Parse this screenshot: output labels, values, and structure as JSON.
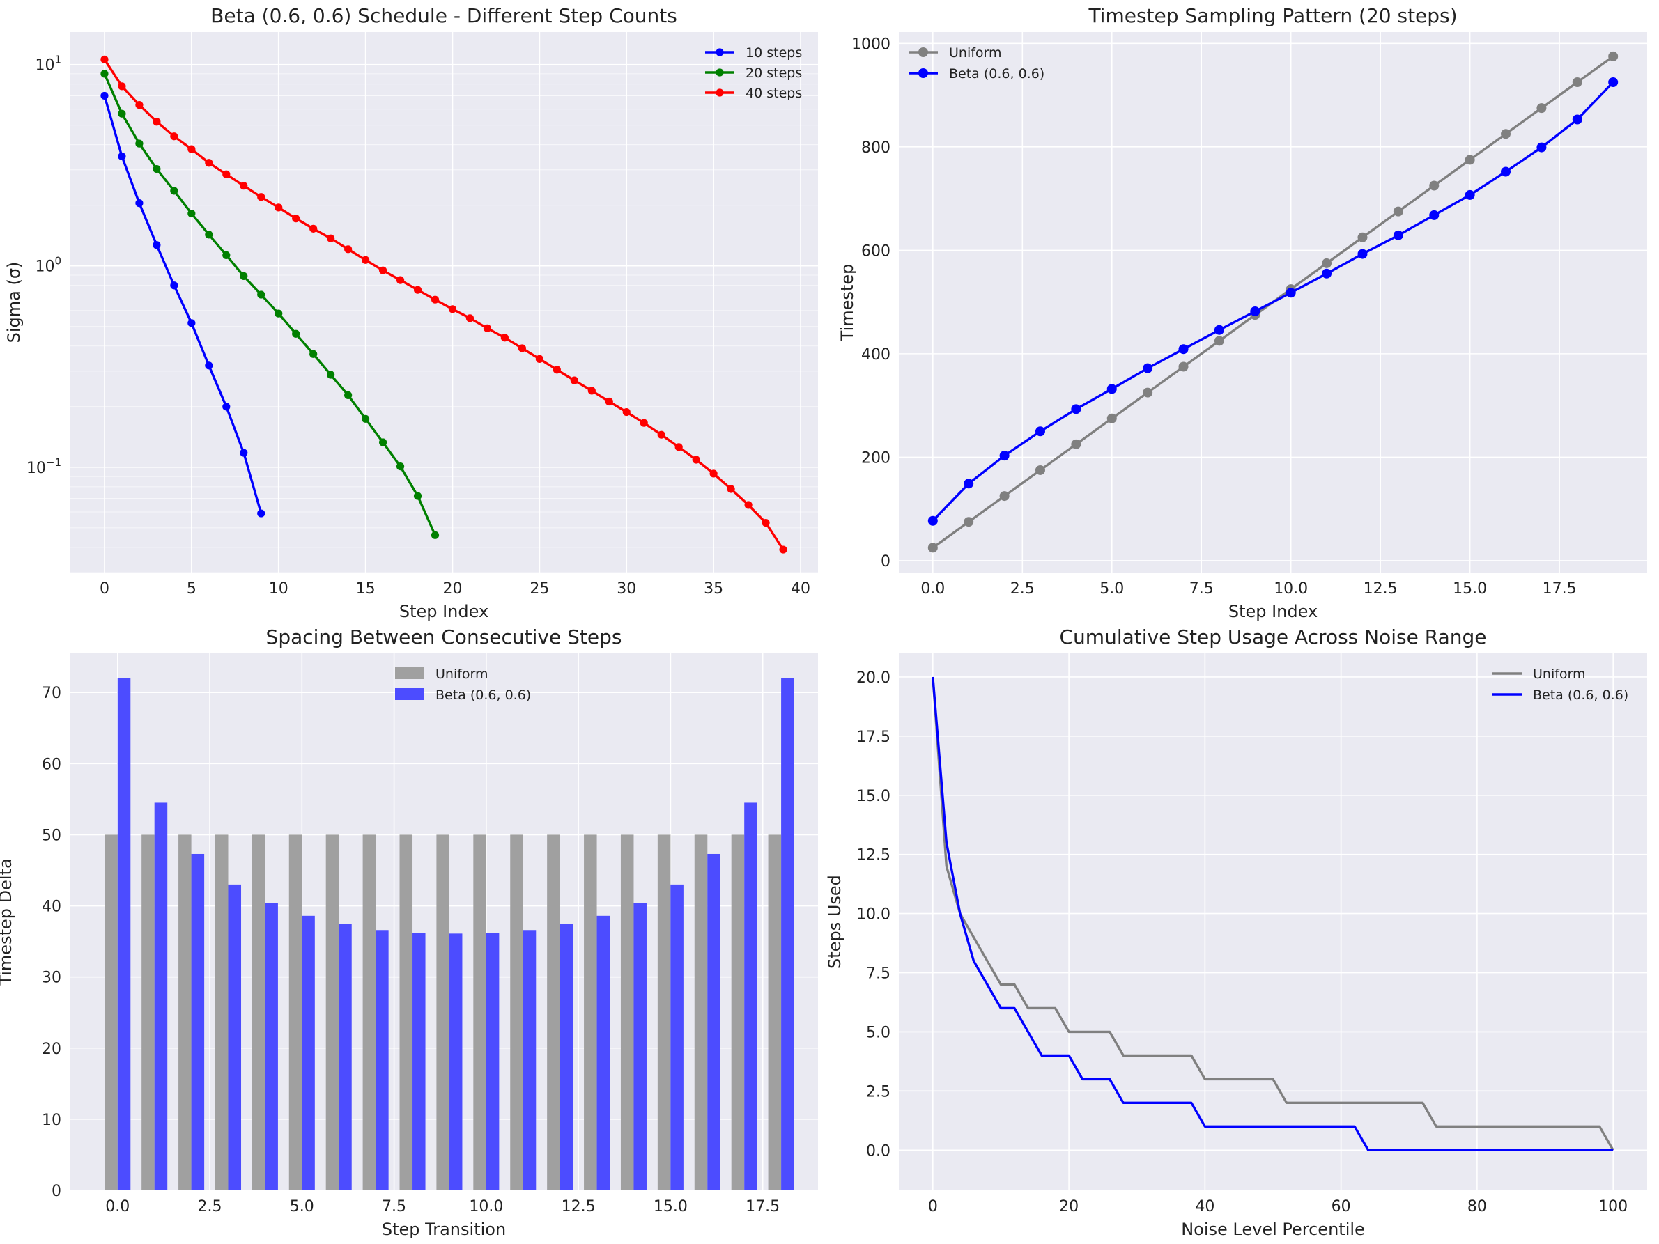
{
  "chart_data": [
    {
      "id": "p1",
      "type": "line",
      "title": "Beta (0.6, 0.6) Schedule - Different Step Counts",
      "xlabel": "Step Index",
      "ylabel": "Sigma (σ)",
      "yscale": "log",
      "xlim": [
        -2,
        41
      ],
      "ylim": [
        0.03,
        14.5
      ],
      "xticks": [
        0,
        5,
        10,
        15,
        20,
        25,
        30,
        35,
        40
      ],
      "xtick_labels": [
        "0",
        "5",
        "10",
        "15",
        "20",
        "25",
        "30",
        "35",
        "40"
      ],
      "ytick_labels": [
        {
          "base": "10",
          "exp": "1",
          "value": 10
        },
        {
          "base": "10",
          "exp": "0",
          "value": 1
        },
        {
          "base": "10",
          "exp": "−1",
          "value": 0.1
        }
      ],
      "legend": "top-right",
      "series": [
        {
          "name": "10 steps",
          "color": "#0000ff",
          "x": [
            0,
            1,
            2,
            3,
            4,
            5,
            6,
            7,
            8,
            9
          ],
          "y": [
            7.0,
            3.5,
            2.05,
            1.27,
            0.8,
            0.52,
            0.32,
            0.2,
            0.118,
            0.059
          ]
        },
        {
          "name": "20 steps",
          "color": "#008000",
          "x": [
            0,
            1,
            2,
            3,
            4,
            5,
            6,
            7,
            8,
            9,
            10,
            11,
            12,
            13,
            14,
            15,
            16,
            17,
            18,
            19
          ],
          "y": [
            9.0,
            5.7,
            4.05,
            3.03,
            2.36,
            1.82,
            1.43,
            1.13,
            0.89,
            0.72,
            0.58,
            0.46,
            0.365,
            0.288,
            0.228,
            0.174,
            0.133,
            0.101,
            0.072,
            0.046
          ]
        },
        {
          "name": "40 steps",
          "color": "#ff0000",
          "x": [
            0,
            1,
            2,
            3,
            4,
            5,
            6,
            7,
            8,
            9,
            10,
            11,
            12,
            13,
            14,
            15,
            16,
            17,
            18,
            19,
            20,
            21,
            22,
            23,
            24,
            25,
            26,
            27,
            28,
            29,
            30,
            31,
            32,
            33,
            34,
            35,
            36,
            37,
            38,
            39
          ],
          "y": [
            10.6,
            7.8,
            6.3,
            5.2,
            4.4,
            3.8,
            3.25,
            2.85,
            2.5,
            2.2,
            1.95,
            1.72,
            1.53,
            1.37,
            1.21,
            1.07,
            0.95,
            0.85,
            0.76,
            0.68,
            0.61,
            0.55,
            0.49,
            0.44,
            0.39,
            0.345,
            0.305,
            0.27,
            0.24,
            0.212,
            0.188,
            0.166,
            0.145,
            0.126,
            0.109,
            0.093,
            0.078,
            0.065,
            0.053,
            0.039
          ]
        }
      ]
    },
    {
      "id": "p2",
      "type": "line",
      "title": "Timestep Sampling Pattern (20 steps)",
      "xlabel": "Step Index",
      "ylabel": "Timestep",
      "xlim": [
        -0.95,
        19.95
      ],
      "ylim": [
        -23,
        1022
      ],
      "xticks": [
        0,
        2.5,
        5,
        7.5,
        10,
        12.5,
        15,
        17.5
      ],
      "xtick_labels": [
        "0.0",
        "2.5",
        "5.0",
        "7.5",
        "10.0",
        "12.5",
        "15.0",
        "17.5"
      ],
      "yticks": [
        0,
        200,
        400,
        600,
        800,
        1000
      ],
      "ytick_labels": [
        "0",
        "200",
        "400",
        "600",
        "800",
        "1000"
      ],
      "legend": "top-left",
      "series": [
        {
          "name": "Uniform",
          "color": "#808080",
          "x": [
            0,
            1,
            2,
            3,
            4,
            5,
            6,
            7,
            8,
            9,
            10,
            11,
            12,
            13,
            14,
            15,
            16,
            17,
            18,
            19
          ],
          "y": [
            25,
            75,
            125,
            175,
            225,
            275,
            325,
            375,
            425,
            475,
            525,
            575,
            625,
            675,
            725,
            775,
            825,
            875,
            925,
            975
          ]
        },
        {
          "name": "Beta (0.6, 0.6)",
          "color": "#0000ff",
          "x": [
            0,
            1,
            2,
            3,
            4,
            5,
            6,
            7,
            8,
            9,
            10,
            11,
            12,
            13,
            14,
            15,
            16,
            17,
            18,
            19
          ],
          "y": [
            77,
            149,
            203,
            250,
            293,
            332,
            372,
            409,
            446,
            482,
            518,
            555,
            593,
            629,
            668,
            707,
            752,
            799,
            853,
            925
          ]
        }
      ]
    },
    {
      "id": "p3",
      "type": "bar",
      "title": "Spacing Between Consecutive Steps",
      "xlabel": "Step Transition",
      "ylabel": "Timestep Delta",
      "xlim": [
        -1.3,
        19.0
      ],
      "ylim": [
        0,
        75.5
      ],
      "xticks": [
        0,
        2.5,
        5,
        7.5,
        10,
        12.5,
        15,
        17.5
      ],
      "xtick_labels": [
        "0.0",
        "2.5",
        "5.0",
        "7.5",
        "10.0",
        "12.5",
        "15.0",
        "17.5"
      ],
      "yticks": [
        0,
        10,
        20,
        30,
        40,
        50,
        60,
        70
      ],
      "ytick_labels": [
        "0",
        "10",
        "20",
        "30",
        "40",
        "50",
        "60",
        "70"
      ],
      "bar_width": 0.35,
      "legend": "top-center",
      "categories": [
        0,
        1,
        2,
        3,
        4,
        5,
        6,
        7,
        8,
        9,
        10,
        11,
        12,
        13,
        14,
        15,
        16,
        17,
        18
      ],
      "series": [
        {
          "name": "Uniform",
          "color": "#a0a0a0",
          "offset": -0.175,
          "values": [
            50,
            50,
            50,
            50,
            50,
            50,
            50,
            50,
            50,
            50,
            50,
            50,
            50,
            50,
            50,
            50,
            50,
            50,
            50
          ]
        },
        {
          "name": "Beta (0.6, 0.6)",
          "color": "#4c4cff",
          "offset": 0.175,
          "values": [
            72,
            54.5,
            47.3,
            43,
            40.4,
            38.6,
            37.5,
            36.6,
            36.2,
            36.1,
            36.2,
            36.6,
            37.5,
            38.6,
            40.4,
            43,
            47.3,
            54.5,
            72
          ]
        }
      ]
    },
    {
      "id": "p4",
      "type": "line",
      "title": "Cumulative Step Usage Across Noise Range",
      "xlabel": "Noise Level Percentile",
      "ylabel": "Steps Used",
      "xlim": [
        -5,
        105
      ],
      "ylim": [
        -1.7,
        21
      ],
      "xticks": [
        0,
        20,
        40,
        60,
        80,
        100
      ],
      "xtick_labels": [
        "0",
        "20",
        "40",
        "60",
        "80",
        "100"
      ],
      "yticks": [
        0,
        2.5,
        5,
        7.5,
        10,
        12.5,
        15,
        17.5,
        20
      ],
      "ytick_labels": [
        "0.0",
        "2.5",
        "5.0",
        "7.5",
        "10.0",
        "12.5",
        "15.0",
        "17.5",
        "20.0"
      ],
      "legend": "top-right",
      "series": [
        {
          "name": "Uniform",
          "color": "#808080",
          "x": [
            0,
            2,
            4,
            6,
            8,
            10,
            12,
            14,
            16,
            18,
            20,
            22,
            24,
            26,
            28,
            30,
            34,
            36,
            38,
            40,
            44,
            48,
            50,
            52,
            56,
            60,
            64,
            68,
            70,
            72,
            74,
            80,
            90,
            96,
            98,
            100
          ],
          "y": [
            20,
            12,
            10,
            9,
            8,
            7,
            7,
            6,
            6,
            6,
            5,
            5,
            5,
            5,
            4,
            4,
            4,
            4,
            4,
            3,
            3,
            3,
            3,
            2,
            2,
            2,
            2,
            2,
            2,
            2,
            1,
            1,
            1,
            1,
            1,
            0
          ]
        },
        {
          "name": "Beta (0.6, 0.6)",
          "color": "#0000ff",
          "x": [
            0,
            2,
            4,
            6,
            8,
            10,
            12,
            14,
            16,
            18,
            20,
            22,
            24,
            26,
            28,
            30,
            36,
            38,
            40,
            44,
            50,
            56,
            60,
            62,
            64,
            70,
            80,
            90,
            100
          ],
          "y": [
            20,
            13,
            10,
            8,
            7,
            6,
            6,
            5,
            4,
            4,
            4,
            3,
            3,
            3,
            2,
            2,
            2,
            2,
            1,
            1,
            1,
            1,
            1,
            1,
            0,
            0,
            0,
            0,
            0
          ]
        }
      ]
    }
  ]
}
